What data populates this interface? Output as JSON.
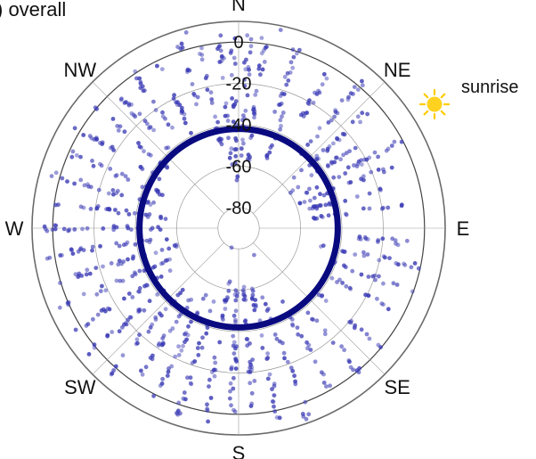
{
  "figure": {
    "panel_title": ") overall",
    "annotation": "sunrise",
    "icon": "sun-icon"
  },
  "colors": {
    "points": "#3b3bb5",
    "mean_ring": "#0a0a80",
    "grid": "#9a9a9a",
    "outer_ring": "#6b6b6b",
    "sun": "#ffd21f",
    "sun_rays": "#ffcc00"
  },
  "chart_data": {
    "type": "scatter",
    "coordinate_system": "polar",
    "title": ") overall",
    "directions": [
      "N",
      "NE",
      "E",
      "SE",
      "S",
      "SW",
      "W",
      "NW"
    ],
    "radial_ticks": [
      0,
      -20,
      -40,
      -60,
      -80
    ],
    "radial_range": [
      -90,
      10
    ],
    "radial_orientation": "descending inward",
    "mean_ring_value": -42,
    "annotations": [
      {
        "text": "sunrise",
        "direction": "NE"
      }
    ],
    "spokes": [
      {
        "azimuth": 8,
        "from": 5,
        "to": -60,
        "count": 26
      },
      {
        "azimuth": 18,
        "from": 2,
        "to": -35,
        "count": 18
      },
      {
        "azimuth": 22,
        "from": -30,
        "to": -55,
        "count": 14
      },
      {
        "azimuth": 30,
        "from": 5,
        "to": -30,
        "count": 16
      },
      {
        "azimuth": 40,
        "from": 3,
        "to": -45,
        "count": 20
      },
      {
        "azimuth": 48,
        "from": -5,
        "to": -55,
        "count": 22
      },
      {
        "azimuth": 55,
        "from": -20,
        "to": -60,
        "count": 18
      },
      {
        "azimuth": 62,
        "from": 0,
        "to": -55,
        "count": 24
      },
      {
        "azimuth": 68,
        "from": -10,
        "to": -60,
        "count": 22
      },
      {
        "azimuth": 75,
        "from": -15,
        "to": -55,
        "count": 18
      },
      {
        "azimuth": 82,
        "from": -10,
        "to": -55,
        "count": 16
      },
      {
        "azimuth": 95,
        "from": -5,
        "to": -50,
        "count": 14
      },
      {
        "azimuth": 102,
        "from": 0,
        "to": -55,
        "count": 20
      },
      {
        "azimuth": 110,
        "from": 0,
        "to": -45,
        "count": 16
      },
      {
        "azimuth": 118,
        "from": 5,
        "to": -40,
        "count": 14
      },
      {
        "azimuth": 130,
        "from": 0,
        "to": -40,
        "count": 14
      },
      {
        "azimuth": 140,
        "from": 5,
        "to": -45,
        "count": 16
      },
      {
        "azimuth": 150,
        "from": 0,
        "to": -50,
        "count": 18
      },
      {
        "azimuth": 160,
        "from": 8,
        "to": -55,
        "count": 22
      },
      {
        "azimuth": 168,
        "from": 5,
        "to": -62,
        "count": 28
      },
      {
        "azimuth": 175,
        "from": 0,
        "to": -65,
        "count": 28
      },
      {
        "azimuth": 182,
        "from": 3,
        "to": -70,
        "count": 30
      },
      {
        "azimuth": 190,
        "from": 5,
        "to": -65,
        "count": 30
      },
      {
        "azimuth": 198,
        "from": 5,
        "to": -55,
        "count": 26
      },
      {
        "azimuth": 206,
        "from": 3,
        "to": -55,
        "count": 24
      },
      {
        "azimuth": 214,
        "from": 0,
        "to": -50,
        "count": 22
      },
      {
        "azimuth": 222,
        "from": 5,
        "to": -50,
        "count": 22
      },
      {
        "azimuth": 230,
        "from": 5,
        "to": -55,
        "count": 24
      },
      {
        "azimuth": 238,
        "from": 3,
        "to": -55,
        "count": 24
      },
      {
        "azimuth": 246,
        "from": 5,
        "to": -55,
        "count": 26
      },
      {
        "azimuth": 254,
        "from": 3,
        "to": -60,
        "count": 26
      },
      {
        "azimuth": 262,
        "from": 5,
        "to": -55,
        "count": 26
      },
      {
        "azimuth": 270,
        "from": 5,
        "to": -55,
        "count": 26
      },
      {
        "azimuth": 278,
        "from": 3,
        "to": -55,
        "count": 24
      },
      {
        "azimuth": 286,
        "from": 5,
        "to": -50,
        "count": 24
      },
      {
        "azimuth": 294,
        "from": 0,
        "to": -50,
        "count": 22
      },
      {
        "azimuth": 302,
        "from": 3,
        "to": -45,
        "count": 20
      },
      {
        "azimuth": 310,
        "from": 5,
        "to": -45,
        "count": 20
      },
      {
        "azimuth": 318,
        "from": 0,
        "to": -40,
        "count": 18
      },
      {
        "azimuth": 326,
        "from": 5,
        "to": -35,
        "count": 16
      },
      {
        "azimuth": 334,
        "from": 0,
        "to": -40,
        "count": 16
      },
      {
        "azimuth": 342,
        "from": 5,
        "to": -30,
        "count": 14
      },
      {
        "azimuth": 348,
        "from": 0,
        "to": -55,
        "count": 20
      },
      {
        "azimuth": 354,
        "from": 5,
        "to": -60,
        "count": 24
      },
      {
        "azimuth": 358,
        "from": 3,
        "to": -70,
        "count": 24
      },
      {
        "azimuth": 3,
        "from": 5,
        "to": -60,
        "count": 24
      }
    ],
    "isolated_points": [
      {
        "azimuth": 150,
        "r": -75
      },
      {
        "azimuth": 200,
        "r": -80
      },
      {
        "azimuth": 345,
        "r": 8
      },
      {
        "azimuth": 12,
        "r": 8
      }
    ]
  }
}
